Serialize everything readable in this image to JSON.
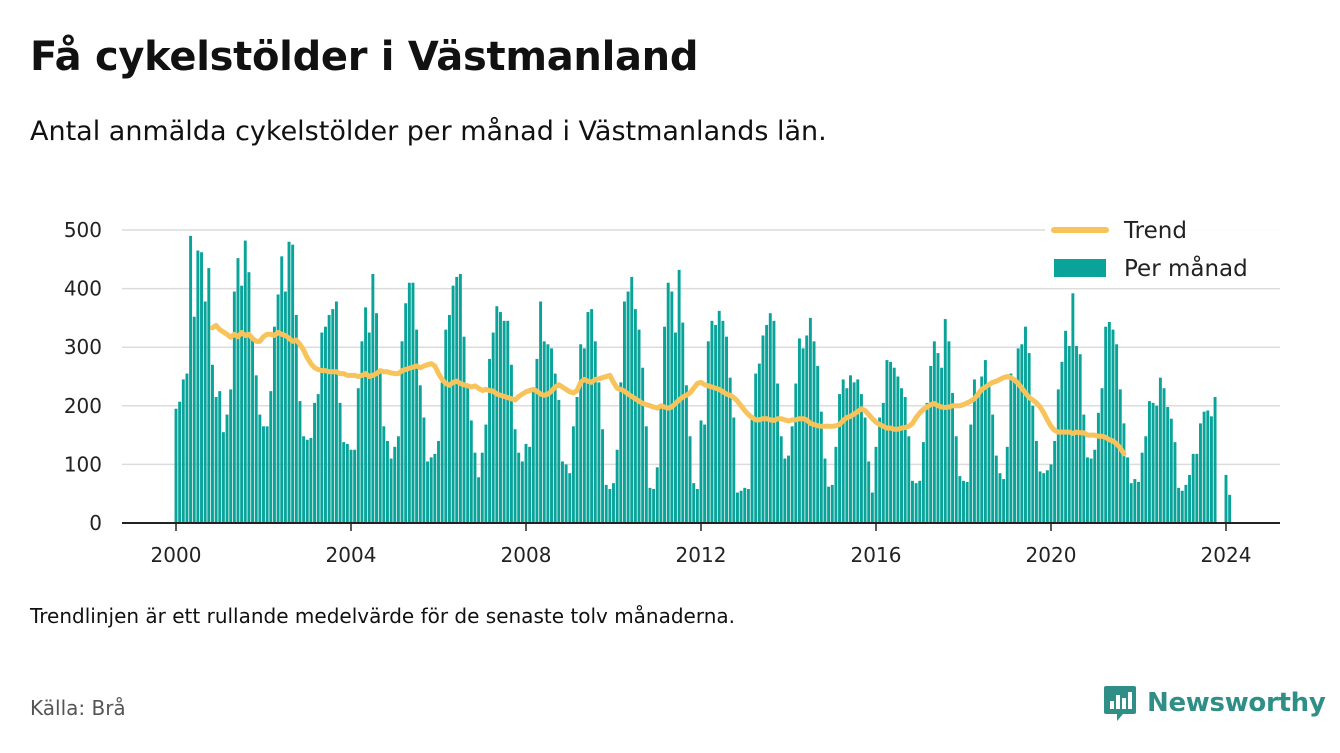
{
  "title": "Få cykelstölder i Västmanland",
  "subtitle": "Antal anmälda cykelstölder per månad i Västmanlands län.",
  "note": "Trendlinjen är ett rullande medelvärde för de senaste tolv månaderna.",
  "source": "Källa: Brå",
  "brand": "Newsworthy",
  "colors": {
    "bars": "#0aa39a",
    "trend": "#f7c35a",
    "brand": "#2f8f86"
  },
  "chart_data": {
    "type": "bar",
    "x_unit": "month",
    "x_start": "2000-01",
    "x_end": "2024-01",
    "ylim": [
      0,
      500
    ],
    "yticks": [
      0,
      100,
      200,
      300,
      400,
      500
    ],
    "xticks": [
      2000,
      2004,
      2008,
      2012,
      2016,
      2020,
      2024
    ],
    "grid": true,
    "legend_position": "top-right",
    "series": [
      {
        "name": "Per månad",
        "type": "bar",
        "values": [
          195,
          207,
          245,
          255,
          490,
          352,
          465,
          462,
          378,
          435,
          270,
          215,
          225,
          155,
          185,
          228,
          395,
          452,
          405,
          482,
          428,
          318,
          252,
          185,
          165,
          165,
          225,
          335,
          390,
          455,
          395,
          480,
          475,
          355,
          208,
          148,
          142,
          145,
          205,
          220,
          325,
          335,
          355,
          365,
          378,
          205,
          138,
          135,
          125,
          125,
          230,
          310,
          368,
          325,
          425,
          358,
          260,
          165,
          140,
          110,
          130,
          148,
          310,
          375,
          410,
          410,
          330,
          235,
          180,
          105,
          112,
          118,
          140,
          240,
          330,
          355,
          405,
          420,
          425,
          318,
          238,
          175,
          120,
          78,
          120,
          168,
          280,
          325,
          370,
          360,
          345,
          345,
          270,
          160,
          120,
          105,
          135,
          130,
          225,
          280,
          378,
          310,
          305,
          298,
          255,
          210,
          105,
          100,
          85,
          165,
          215,
          305,
          298,
          360,
          365,
          310,
          240,
          160,
          65,
          58,
          68,
          125,
          240,
          378,
          395,
          420,
          365,
          330,
          265,
          165,
          60,
          58,
          95,
          200,
          335,
          410,
          395,
          325,
          432,
          342,
          235,
          148,
          68,
          58,
          175,
          168,
          310,
          345,
          338,
          362,
          345,
          318,
          248,
          180,
          52,
          55,
          60,
          58,
          180,
          255,
          272,
          320,
          338,
          358,
          345,
          238,
          148,
          110,
          115,
          165,
          238,
          315,
          298,
          320,
          350,
          310,
          268,
          190,
          110,
          62,
          65,
          130,
          220,
          245,
          230,
          252,
          240,
          245,
          220,
          180,
          105,
          52,
          130,
          180,
          205,
          278,
          275,
          265,
          250,
          230,
          215,
          148,
          72,
          68,
          72,
          138,
          205,
          268,
          310,
          290,
          265,
          348,
          310,
          222,
          148,
          80,
          72,
          70,
          168,
          245,
          220,
          250,
          278,
          240,
          185,
          115,
          85,
          75,
          130,
          255,
          245,
          298,
          305,
          335,
          290,
          200,
          140,
          88,
          85,
          90,
          100,
          140,
          228,
          275,
          328,
          302,
          392,
          302,
          288,
          185,
          112,
          110,
          125,
          188,
          230,
          335,
          343,
          330,
          305,
          228,
          170,
          112,
          68,
          75,
          70,
          120,
          148,
          208,
          205,
          200,
          248,
          230,
          198,
          178,
          138,
          60,
          55,
          65,
          82,
          118,
          118,
          170,
          190,
          192,
          182,
          215,
          0,
          0,
          82,
          48
        ]
      },
      {
        "name": "Trend",
        "type": "line",
        "x_start": "2000-11",
        "values": [
          333,
          337,
          330,
          326,
          322,
          317,
          322,
          318,
          325,
          320,
          322,
          315,
          310,
          310,
          318,
          322,
          322,
          320,
          325,
          322,
          320,
          315,
          310,
          312,
          305,
          295,
          282,
          272,
          265,
          262,
          260,
          260,
          258,
          258,
          258,
          255,
          255,
          252,
          252,
          252,
          250,
          252,
          255,
          250,
          252,
          255,
          260,
          258,
          258,
          256,
          255,
          255,
          260,
          262,
          264,
          266,
          268,
          265,
          268,
          270,
          272,
          268,
          255,
          245,
          238,
          235,
          240,
          242,
          238,
          236,
          234,
          232,
          234,
          230,
          226,
          228,
          226,
          225,
          220,
          218,
          216,
          214,
          212,
          210,
          216,
          220,
          224,
          226,
          228,
          225,
          220,
          218,
          220,
          225,
          232,
          236,
          232,
          228,
          224,
          222,
          226,
          240,
          245,
          242,
          240,
          245,
          246,
          248,
          250,
          252,
          240,
          230,
          228,
          225,
          220,
          216,
          212,
          208,
          204,
          202,
          200,
          198,
          196,
          200,
          198,
          196,
          198,
          204,
          210,
          215,
          218,
          222,
          230,
          238,
          240,
          236,
          234,
          232,
          230,
          228,
          224,
          220,
          218,
          214,
          208,
          200,
          192,
          185,
          180,
          176,
          176,
          178,
          178,
          176,
          175,
          178,
          178,
          176,
          174,
          176,
          176,
          178,
          178,
          176,
          170,
          168,
          166,
          165,
          165,
          165,
          165,
          166,
          168,
          175,
          180,
          182,
          186,
          190,
          195,
          192,
          185,
          178,
          172,
          168,
          165,
          162,
          162,
          160,
          160,
          162,
          163,
          165,
          170,
          180,
          188,
          194,
          198,
          202,
          204,
          200,
          198,
          197,
          198,
          200,
          200,
          200,
          202,
          205,
          208,
          212,
          220,
          228,
          232,
          236,
          240,
          242,
          245,
          248,
          250,
          248,
          244,
          238,
          230,
          222,
          214,
          210,
          205,
          198,
          188,
          176,
          165,
          158,
          155,
          155,
          155,
          155,
          153,
          155,
          154,
          154,
          150,
          150,
          150,
          148,
          148,
          146,
          142,
          140,
          135,
          128,
          118
        ]
      }
    ]
  }
}
